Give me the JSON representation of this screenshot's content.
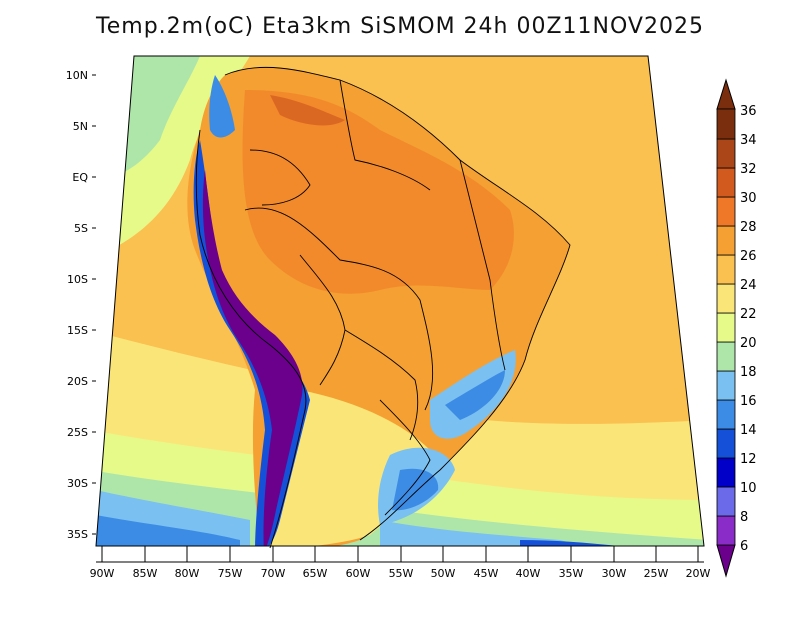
{
  "title": "Temp.2m(oC) Eta3km SiSMOM 24h 00Z11NOV2025",
  "map": {
    "lat_labels": [
      "10N",
      "5N",
      "EQ",
      "5S",
      "10S",
      "15S",
      "20S",
      "25S",
      "30S",
      "35S"
    ],
    "lon_labels": [
      "90W",
      "85W",
      "80W",
      "75W",
      "70W",
      "65W",
      "60W",
      "55W",
      "50W",
      "45W",
      "40W",
      "35W",
      "30W",
      "25W",
      "20W"
    ]
  },
  "colorbar": {
    "labels": [
      "6",
      "8",
      "10",
      "12",
      "14",
      "16",
      "18",
      "20",
      "22",
      "24",
      "26",
      "28",
      "30",
      "32",
      "34",
      "36"
    ],
    "colors": [
      "#6a008c",
      "#8a2cc8",
      "#6b6bea",
      "#0000c8",
      "#1550d8",
      "#3c8ce6",
      "#7ac0f0",
      "#aee6aa",
      "#e6fa8a",
      "#fae678",
      "#fac050",
      "#f5a032",
      "#ee7828",
      "#d25a1e",
      "#aa4617",
      "#7a2e0e"
    ]
  },
  "colors": {
    "ocean_warm": "#fac050",
    "land_warm": "#f5a032",
    "border": "#000000"
  }
}
